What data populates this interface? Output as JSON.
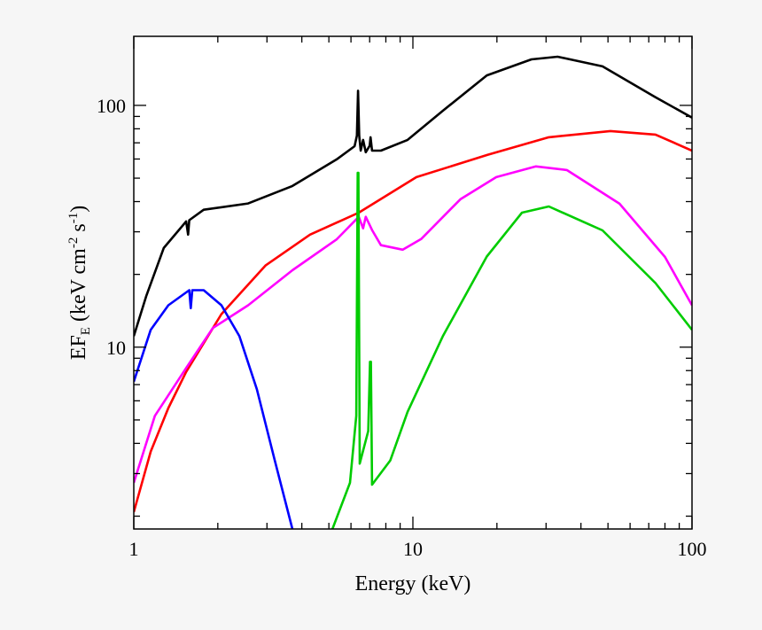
{
  "chart_data": {
    "type": "line",
    "title": "",
    "xlabel": "Energy (keV)",
    "ylabel": {
      "main": "EF",
      "sub": "E",
      "unit1": " (keV cm",
      "sup1": "-2",
      "unit2": " s",
      "sup2": "-1",
      "close": ")"
    },
    "xscale": "log",
    "yscale": "log",
    "xlim": [
      1,
      100
    ],
    "ylim": [
      1.77,
      193
    ],
    "grid": false,
    "legend": "none",
    "xticks": [
      {
        "value": 1,
        "label": "1"
      },
      {
        "value": 10,
        "label": "10"
      },
      {
        "value": 100,
        "label": "100"
      }
    ],
    "yticks": [
      {
        "value": 10,
        "label": "10"
      },
      {
        "value": 100,
        "label": "100"
      }
    ],
    "series": [
      {
        "color": "#000000",
        "points": [
          [
            1,
            11.1
          ],
          [
            1.107,
            16.2
          ],
          [
            1.28,
            25.7
          ],
          [
            1.54,
            33.1
          ],
          [
            1.565,
            29.2
          ],
          [
            1.58,
            33.5
          ],
          [
            1.78,
            37
          ],
          [
            2.57,
            39.3
          ],
          [
            3.7,
            46.4
          ],
          [
            5.33,
            59.8
          ],
          [
            6.18,
            67.8
          ],
          [
            6.3,
            75
          ],
          [
            6.36,
            115
          ],
          [
            6.42,
            75
          ],
          [
            6.5,
            65
          ],
          [
            6.63,
            72
          ],
          [
            6.78,
            64
          ],
          [
            7.0,
            68
          ],
          [
            7.05,
            73.8
          ],
          [
            7.14,
            65
          ],
          [
            7.68,
            65
          ],
          [
            9.57,
            72
          ],
          [
            12.8,
            95
          ],
          [
            18.4,
            133
          ],
          [
            26.6,
            155
          ],
          [
            33,
            159
          ],
          [
            47.8,
            145
          ],
          [
            74,
            108
          ],
          [
            100,
            89
          ]
        ]
      },
      {
        "color": "#ff0000",
        "points": [
          [
            1,
            2.08
          ],
          [
            1.15,
            3.7
          ],
          [
            1.33,
            5.6
          ],
          [
            1.54,
            7.9
          ],
          [
            2.06,
            13.7
          ],
          [
            2.97,
            21.8
          ],
          [
            4.28,
            29.2
          ],
          [
            6.4,
            36
          ],
          [
            10.3,
            50.5
          ],
          [
            18.5,
            62.4
          ],
          [
            30.7,
            73.8
          ],
          [
            51,
            78.3
          ],
          [
            74,
            75.7
          ],
          [
            100,
            65
          ]
        ]
      },
      {
        "color": "#ff00ff",
        "points": [
          [
            1,
            2.75
          ],
          [
            1.19,
            5.2
          ],
          [
            1.54,
            8.2
          ],
          [
            1.92,
            12
          ],
          [
            2.57,
            14.9
          ],
          [
            3.7,
            20.8
          ],
          [
            5.33,
            27.9
          ],
          [
            6.4,
            34.6
          ],
          [
            6.63,
            31
          ],
          [
            6.78,
            34.6
          ],
          [
            7.14,
            30.5
          ],
          [
            7.68,
            26.4
          ],
          [
            9.2,
            25.3
          ],
          [
            10.7,
            28
          ],
          [
            14.8,
            40.9
          ],
          [
            19.9,
            50.5
          ],
          [
            27.6,
            55.9
          ],
          [
            35.6,
            54
          ],
          [
            55,
            39.2
          ],
          [
            80,
            23.6
          ],
          [
            100,
            14.9
          ]
        ]
      },
      {
        "color": "#0000ff",
        "points": [
          [
            1,
            7.2
          ],
          [
            1.15,
            11.8
          ],
          [
            1.33,
            14.9
          ],
          [
            1.58,
            17.2
          ],
          [
            1.6,
            14.5
          ],
          [
            1.62,
            17.2
          ],
          [
            1.78,
            17.2
          ],
          [
            2.06,
            14.9
          ],
          [
            2.39,
            11.1
          ],
          [
            2.76,
            6.7
          ],
          [
            3.2,
            3.4
          ],
          [
            3.7,
            1.77
          ]
        ]
      },
      {
        "color": "#00cc00",
        "points": [
          [
            5.15,
            1.77
          ],
          [
            5.95,
            2.75
          ],
          [
            6.27,
            5.2
          ],
          [
            6.34,
            52.6
          ],
          [
            6.38,
            52.6
          ],
          [
            6.45,
            3.3
          ],
          [
            6.92,
            4.5
          ],
          [
            7.02,
            8.7
          ],
          [
            7.07,
            8.7
          ],
          [
            7.14,
            2.7
          ],
          [
            8.3,
            3.4
          ],
          [
            9.57,
            5.4
          ],
          [
            12.8,
            11.1
          ],
          [
            18.4,
            23.7
          ],
          [
            24.6,
            36
          ],
          [
            30.7,
            38.2
          ],
          [
            47.8,
            30.4
          ],
          [
            74,
            18.4
          ],
          [
            100,
            11.8
          ]
        ]
      }
    ]
  }
}
